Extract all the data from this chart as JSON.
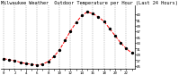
{
  "title": "Milwaukee Weather  Outdoor Temperature per Hour (Last 24 Hours)",
  "hours": [
    0,
    1,
    2,
    3,
    4,
    5,
    6,
    7,
    8,
    9,
    10,
    11,
    12,
    13,
    14,
    15,
    16,
    17,
    18,
    19,
    20,
    21,
    22,
    23
  ],
  "temps": [
    27.5,
    27.1,
    26.8,
    26.2,
    25.8,
    25.5,
    25.3,
    25.6,
    26.5,
    28.2,
    30.5,
    33.8,
    37.2,
    40.1,
    42.5,
    43.8,
    43.2,
    42.0,
    40.5,
    38.0,
    35.5,
    33.0,
    31.0,
    29.5
  ],
  "line_color": "#ff0000",
  "dot_color": "#000000",
  "grid_color": "#888888",
  "bg_color": "#ffffff",
  "ylim_min": 24,
  "ylim_max": 46,
  "ytick_values": [
    25,
    27,
    29,
    31,
    33,
    35,
    37,
    39,
    41,
    43
  ],
  "ytick_labels": [
    "25",
    "27",
    "29",
    "31",
    "33",
    "35",
    "37",
    "39",
    "41",
    "43"
  ],
  "title_fontsize": 3.8,
  "tick_fontsize": 3.0,
  "line_width": 0.7,
  "dot_size": 2.0,
  "grid_linewidth": 0.35,
  "spine_linewidth": 0.5
}
